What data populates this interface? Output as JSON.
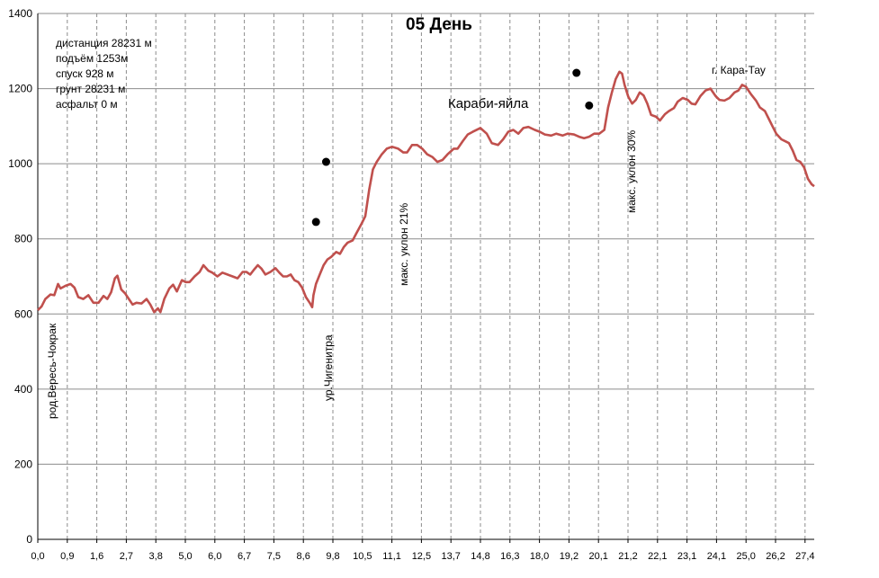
{
  "chart_data": {
    "type": "line",
    "title": "05 День",
    "xlabel": "",
    "ylabel": "",
    "ylim": [
      0,
      1400
    ],
    "y_ticks": [
      0,
      200,
      400,
      600,
      800,
      1000,
      1200,
      1400
    ],
    "x_tick_labels": [
      "0,0",
      "0,9",
      "1,6",
      "2,7",
      "3,8",
      "5,0",
      "6,0",
      "6,7",
      "7,5",
      "8,6",
      "9,8",
      "10,5",
      "11,1",
      "12,5",
      "13,7",
      "14,8",
      "16,3",
      "18,0",
      "19,2",
      "20,1",
      "21,2",
      "22,1",
      "23,1",
      "24,1",
      "25,0",
      "26,2",
      "27,4"
    ],
    "grid": true,
    "series_color": "#c0504d",
    "stats": [
      "дистанция 28231 м",
      "подъём 1253м",
      "спуск 928 м",
      "грунт 28231 м",
      "асфальт  0 м"
    ],
    "annotations": {
      "start": "род.Вересь-Чокрак",
      "chigenitra": "ур.Чигенитра",
      "slope21": "макс. уклон 21%",
      "karabi": "Караби-яйла",
      "slope30": "макс. уклон 30%",
      "karatau": "г. Кара-Тау"
    },
    "marker_points": [
      {
        "x": 11.0,
        "y": 845
      },
      {
        "x": 11.4,
        "y": 1005
      },
      {
        "x": 21.3,
        "y": 1242
      },
      {
        "x": 21.8,
        "y": 1155
      }
    ],
    "profile": [
      [
        0.0,
        610
      ],
      [
        0.15,
        620
      ],
      [
        0.3,
        640
      ],
      [
        0.5,
        652
      ],
      [
        0.65,
        650
      ],
      [
        0.8,
        680
      ],
      [
        0.9,
        668
      ],
      [
        1.1,
        675
      ],
      [
        1.3,
        680
      ],
      [
        1.45,
        670
      ],
      [
        1.6,
        645
      ],
      [
        1.8,
        640
      ],
      [
        2.0,
        650
      ],
      [
        2.2,
        630
      ],
      [
        2.4,
        630
      ],
      [
        2.6,
        648
      ],
      [
        2.75,
        640
      ],
      [
        2.9,
        658
      ],
      [
        3.05,
        695
      ],
      [
        3.15,
        702
      ],
      [
        3.3,
        665
      ],
      [
        3.45,
        655
      ],
      [
        3.6,
        640
      ],
      [
        3.75,
        625
      ],
      [
        3.9,
        630
      ],
      [
        4.1,
        628
      ],
      [
        4.3,
        640
      ],
      [
        4.45,
        625
      ],
      [
        4.6,
        605
      ],
      [
        4.75,
        615
      ],
      [
        4.85,
        605
      ],
      [
        5.0,
        640
      ],
      [
        5.2,
        668
      ],
      [
        5.35,
        678
      ],
      [
        5.5,
        660
      ],
      [
        5.7,
        690
      ],
      [
        5.85,
        685
      ],
      [
        6.0,
        685
      ],
      [
        6.2,
        700
      ],
      [
        6.4,
        712
      ],
      [
        6.55,
        730
      ],
      [
        6.75,
        715
      ],
      [
        6.9,
        710
      ],
      [
        7.1,
        700
      ],
      [
        7.3,
        710
      ],
      [
        7.5,
        705
      ],
      [
        7.7,
        700
      ],
      [
        7.9,
        695
      ],
      [
        8.1,
        712
      ],
      [
        8.25,
        712
      ],
      [
        8.4,
        705
      ],
      [
        8.55,
        718
      ],
      [
        8.7,
        730
      ],
      [
        8.85,
        720
      ],
      [
        9.0,
        705
      ],
      [
        9.2,
        712
      ],
      [
        9.4,
        722
      ],
      [
        9.55,
        710
      ],
      [
        9.7,
        700
      ],
      [
        9.85,
        700
      ],
      [
        10.0,
        705
      ],
      [
        10.15,
        690
      ],
      [
        10.3,
        685
      ],
      [
        10.45,
        670
      ],
      [
        10.6,
        645
      ],
      [
        10.75,
        630
      ],
      [
        10.85,
        618
      ],
      [
        10.9,
        650
      ],
      [
        11.0,
        680
      ],
      [
        11.15,
        705
      ],
      [
        11.3,
        730
      ],
      [
        11.45,
        745
      ],
      [
        11.6,
        752
      ],
      [
        11.8,
        765
      ],
      [
        11.95,
        760
      ],
      [
        12.1,
        778
      ],
      [
        12.25,
        790
      ],
      [
        12.45,
        796
      ],
      [
        12.6,
        815
      ],
      [
        12.8,
        840
      ],
      [
        12.95,
        860
      ],
      [
        13.1,
        930
      ],
      [
        13.25,
        985
      ],
      [
        13.4,
        1005
      ],
      [
        13.6,
        1025
      ],
      [
        13.8,
        1040
      ],
      [
        14.0,
        1045
      ],
      [
        14.25,
        1040
      ],
      [
        14.45,
        1030
      ],
      [
        14.6,
        1030
      ],
      [
        14.8,
        1050
      ],
      [
        15.0,
        1050
      ],
      [
        15.2,
        1040
      ],
      [
        15.4,
        1025
      ],
      [
        15.6,
        1018
      ],
      [
        15.8,
        1005
      ],
      [
        16.0,
        1010
      ],
      [
        16.2,
        1025
      ],
      [
        16.45,
        1040
      ],
      [
        16.6,
        1040
      ],
      [
        16.8,
        1060
      ],
      [
        17.0,
        1078
      ],
      [
        17.2,
        1085
      ],
      [
        17.5,
        1095
      ],
      [
        17.75,
        1080
      ],
      [
        17.95,
        1055
      ],
      [
        18.2,
        1050
      ],
      [
        18.4,
        1065
      ],
      [
        18.6,
        1085
      ],
      [
        18.8,
        1090
      ],
      [
        19.0,
        1080
      ],
      [
        19.2,
        1095
      ],
      [
        19.4,
        1098
      ],
      [
        19.65,
        1090
      ],
      [
        19.85,
        1085
      ],
      [
        20.05,
        1078
      ],
      [
        20.3,
        1075
      ],
      [
        20.5,
        1080
      ],
      [
        20.75,
        1075
      ],
      [
        20.95,
        1080
      ],
      [
        21.2,
        1078
      ],
      [
        21.4,
        1072
      ],
      [
        21.6,
        1068
      ],
      [
        21.8,
        1072
      ],
      [
        22.0,
        1080
      ],
      [
        22.2,
        1080
      ],
      [
        22.4,
        1090
      ],
      [
        22.55,
        1150
      ],
      [
        22.7,
        1190
      ],
      [
        22.85,
        1225
      ],
      [
        23.0,
        1245
      ],
      [
        23.1,
        1240
      ],
      [
        23.2,
        1210
      ],
      [
        23.35,
        1178
      ],
      [
        23.5,
        1160
      ],
      [
        23.65,
        1170
      ],
      [
        23.8,
        1190
      ],
      [
        23.95,
        1182
      ],
      [
        24.1,
        1160
      ],
      [
        24.25,
        1130
      ],
      [
        24.45,
        1125
      ],
      [
        24.6,
        1115
      ],
      [
        24.8,
        1132
      ],
      [
        24.95,
        1140
      ],
      [
        25.15,
        1148
      ],
      [
        25.3,
        1165
      ],
      [
        25.5,
        1175
      ],
      [
        25.7,
        1170
      ],
      [
        25.85,
        1160
      ],
      [
        26.0,
        1158
      ],
      [
        26.2,
        1180
      ],
      [
        26.4,
        1195
      ],
      [
        26.6,
        1200
      ],
      [
        26.8,
        1180
      ],
      [
        26.95,
        1170
      ],
      [
        27.15,
        1168
      ],
      [
        27.35,
        1175
      ],
      [
        27.55,
        1190
      ],
      [
        27.7,
        1195
      ],
      [
        27.85,
        1210
      ],
      [
        28.0,
        1205
      ],
      [
        28.2,
        1185
      ],
      [
        28.4,
        1168
      ],
      [
        28.55,
        1150
      ],
      [
        28.75,
        1140
      ],
      [
        28.9,
        1120
      ],
      [
        29.05,
        1100
      ],
      [
        29.2,
        1080
      ],
      [
        29.4,
        1065
      ],
      [
        29.55,
        1060
      ],
      [
        29.7,
        1055
      ],
      [
        29.85,
        1035
      ],
      [
        30.0,
        1010
      ],
      [
        30.15,
        1005
      ],
      [
        30.3,
        990
      ],
      [
        30.45,
        960
      ],
      [
        30.6,
        945
      ],
      [
        30.7,
        940
      ]
    ]
  }
}
